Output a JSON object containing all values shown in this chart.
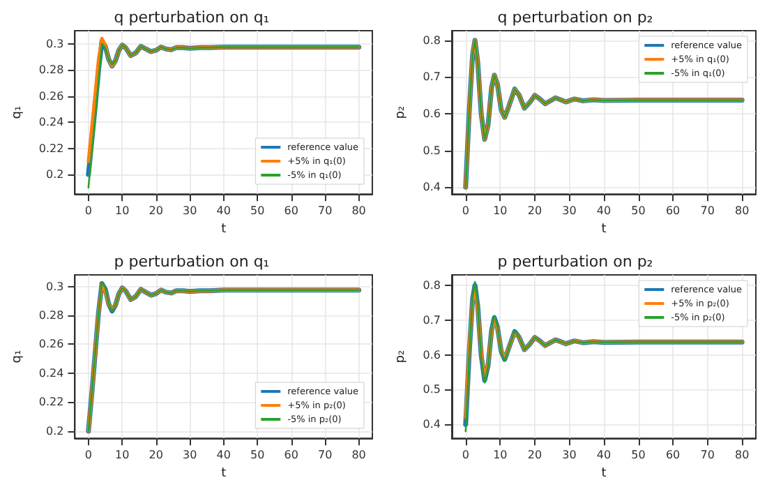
{
  "chart_data": [
    {
      "type": "line",
      "title": "q perturbation on q₁",
      "xlabel": "t",
      "ylabel": "q₁",
      "xlim": [
        -4,
        84
      ],
      "xticks": [
        0,
        10,
        20,
        30,
        40,
        50,
        60,
        70,
        80
      ],
      "ylim": [
        0.185,
        0.31
      ],
      "yticks": [
        0.2,
        0.22,
        0.24,
        0.26,
        0.28,
        0.3
      ],
      "grid": true,
      "legend": "bottom right",
      "line_style": "solid",
      "marker": "none",
      "x": [
        0,
        1,
        2,
        3,
        4,
        5,
        6,
        7,
        8,
        9,
        10,
        11,
        12.5,
        14,
        15.5,
        17,
        18.5,
        20,
        21.5,
        23,
        24.5,
        26,
        28,
        30,
        33,
        36,
        40,
        50,
        60,
        70,
        80
      ],
      "series": [
        {
          "name": "reference value",
          "color": "#1f77b4",
          "values": [
            0.2,
            0.226,
            0.252,
            0.28,
            0.302,
            0.298,
            0.288,
            0.283,
            0.287,
            0.295,
            0.299,
            0.297,
            0.291,
            0.293,
            0.298,
            0.296,
            0.294,
            0.295,
            0.2975,
            0.296,
            0.2955,
            0.297,
            0.297,
            0.2965,
            0.297,
            0.297,
            0.2975,
            0.2975,
            0.2975,
            0.2975,
            0.2975
          ]
        },
        {
          "name": "+5% in q₁(0)",
          "color": "#ff7f0e",
          "values": [
            0.21,
            0.236,
            0.262,
            0.288,
            0.304,
            0.299,
            0.288,
            0.283,
            0.287,
            0.295,
            0.299,
            0.297,
            0.291,
            0.293,
            0.298,
            0.296,
            0.294,
            0.295,
            0.2975,
            0.296,
            0.2955,
            0.297,
            0.297,
            0.2965,
            0.297,
            0.297,
            0.2975,
            0.2975,
            0.2975,
            0.2975,
            0.2975
          ]
        },
        {
          "name": "-5% in q₁(0)",
          "color": "#2ca02c",
          "values": [
            0.19,
            0.216,
            0.243,
            0.272,
            0.3,
            0.297,
            0.288,
            0.284,
            0.287,
            0.295,
            0.299,
            0.297,
            0.291,
            0.293,
            0.298,
            0.296,
            0.294,
            0.295,
            0.2975,
            0.296,
            0.2955,
            0.297,
            0.297,
            0.2965,
            0.297,
            0.297,
            0.2975,
            0.2975,
            0.2975,
            0.2975,
            0.2975
          ]
        }
      ]
    },
    {
      "type": "line",
      "title": "q perturbation on p₂",
      "xlabel": "t",
      "ylabel": "p₂",
      "xlim": [
        -4,
        84
      ],
      "xticks": [
        0,
        10,
        20,
        30,
        40,
        50,
        60,
        70,
        80
      ],
      "ylim": [
        0.381,
        0.826
      ],
      "yticks": [
        0.4,
        0.5,
        0.6,
        0.7,
        0.8
      ],
      "grid": true,
      "legend": "top right",
      "line_style": "solid",
      "marker": "none",
      "x": [
        0,
        1,
        2,
        2.7,
        3.5,
        4.5,
        5.5,
        6.5,
        7.5,
        8.3,
        9.2,
        10.3,
        11.3,
        12.5,
        14.2,
        15.5,
        17,
        18.5,
        20,
        21.5,
        23,
        24.5,
        26,
        27.5,
        29,
        31.5,
        34,
        37,
        40,
        50,
        60,
        70,
        80
      ],
      "series": [
        {
          "name": "reference value",
          "color": "#1f77b4",
          "values": [
            0.4,
            0.6,
            0.76,
            0.8,
            0.74,
            0.6,
            0.53,
            0.57,
            0.67,
            0.705,
            0.68,
            0.61,
            0.59,
            0.62,
            0.667,
            0.65,
            0.615,
            0.63,
            0.65,
            0.64,
            0.627,
            0.635,
            0.643,
            0.638,
            0.632,
            0.64,
            0.635,
            0.638,
            0.636,
            0.637,
            0.637,
            0.637,
            0.637
          ]
        },
        {
          "name": "+5% in q₁(0)",
          "color": "#ff7f0e",
          "values": [
            0.4,
            0.6,
            0.76,
            0.8,
            0.74,
            0.6,
            0.53,
            0.57,
            0.67,
            0.705,
            0.68,
            0.61,
            0.59,
            0.62,
            0.667,
            0.65,
            0.615,
            0.63,
            0.65,
            0.64,
            0.627,
            0.635,
            0.643,
            0.638,
            0.632,
            0.64,
            0.635,
            0.638,
            0.636,
            0.637,
            0.637,
            0.637,
            0.637
          ]
        },
        {
          "name": "-5% in q₁(0)",
          "color": "#2ca02c",
          "values": [
            0.4,
            0.6,
            0.76,
            0.8,
            0.74,
            0.6,
            0.53,
            0.57,
            0.67,
            0.705,
            0.68,
            0.61,
            0.59,
            0.62,
            0.667,
            0.65,
            0.615,
            0.63,
            0.65,
            0.64,
            0.627,
            0.635,
            0.643,
            0.638,
            0.632,
            0.64,
            0.635,
            0.638,
            0.636,
            0.637,
            0.637,
            0.637,
            0.637
          ]
        }
      ]
    },
    {
      "type": "line",
      "title": "p perturbation on q₁",
      "xlabel": "t",
      "ylabel": "q₁",
      "xlim": [
        -4,
        84
      ],
      "xticks": [
        0,
        10,
        20,
        30,
        40,
        50,
        60,
        70,
        80
      ],
      "ylim": [
        0.195,
        0.308
      ],
      "yticks": [
        0.2,
        0.22,
        0.24,
        0.26,
        0.28,
        0.3
      ],
      "grid": true,
      "legend": "bottom right",
      "line_style": "solid",
      "marker": "none",
      "x": [
        0,
        1,
        2,
        3,
        4,
        5,
        6,
        7,
        8,
        9,
        10,
        11,
        12.5,
        14,
        15.5,
        17,
        18.5,
        20,
        21.5,
        23,
        24.5,
        26,
        28,
        30,
        33,
        36,
        40,
        50,
        60,
        70,
        80
      ],
      "series": [
        {
          "name": "reference value",
          "color": "#1f77b4",
          "values": [
            0.2,
            0.226,
            0.254,
            0.282,
            0.302,
            0.298,
            0.288,
            0.283,
            0.287,
            0.295,
            0.299,
            0.297,
            0.291,
            0.293,
            0.298,
            0.296,
            0.294,
            0.295,
            0.2975,
            0.296,
            0.2955,
            0.297,
            0.297,
            0.2965,
            0.297,
            0.297,
            0.2975,
            0.2975,
            0.2975,
            0.2975,
            0.2975
          ]
        },
        {
          "name": "+5% in p₂(0)",
          "color": "#ff7f0e",
          "values": [
            0.2,
            0.226,
            0.254,
            0.282,
            0.301,
            0.297,
            0.288,
            0.284,
            0.287,
            0.295,
            0.299,
            0.297,
            0.291,
            0.293,
            0.298,
            0.296,
            0.294,
            0.295,
            0.2975,
            0.296,
            0.2955,
            0.297,
            0.297,
            0.2965,
            0.297,
            0.297,
            0.2975,
            0.2975,
            0.2975,
            0.2975,
            0.2975
          ]
        },
        {
          "name": "-5% in p₂(0)",
          "color": "#2ca02c",
          "values": [
            0.2,
            0.226,
            0.254,
            0.282,
            0.303,
            0.299,
            0.288,
            0.283,
            0.287,
            0.295,
            0.299,
            0.297,
            0.291,
            0.293,
            0.298,
            0.296,
            0.294,
            0.295,
            0.2975,
            0.296,
            0.2955,
            0.297,
            0.297,
            0.2965,
            0.297,
            0.297,
            0.2975,
            0.2975,
            0.2975,
            0.2975,
            0.2975
          ]
        }
      ]
    },
    {
      "type": "line",
      "title": "p perturbation on p₂",
      "xlabel": "t",
      "ylabel": "p₂",
      "xlim": [
        -4,
        84
      ],
      "xticks": [
        0,
        10,
        20,
        30,
        40,
        50,
        60,
        70,
        80
      ],
      "ylim": [
        0.36,
        0.83
      ],
      "yticks": [
        0.4,
        0.5,
        0.6,
        0.7,
        0.8
      ],
      "grid": true,
      "legend": "top right",
      "line_style": "solid",
      "marker": "none",
      "x": [
        0,
        1,
        2,
        2.7,
        3.5,
        4.5,
        5.5,
        6.5,
        7.5,
        8.3,
        9.2,
        10.3,
        11.3,
        12.5,
        14.2,
        15.5,
        17,
        18.5,
        20,
        21.5,
        23,
        24.5,
        26,
        27.5,
        29,
        31.5,
        34,
        37,
        40,
        50,
        60,
        70,
        80
      ],
      "series": [
        {
          "name": "reference value",
          "color": "#1f77b4",
          "values": [
            0.4,
            0.6,
            0.76,
            0.8,
            0.74,
            0.6,
            0.527,
            0.57,
            0.67,
            0.707,
            0.68,
            0.61,
            0.587,
            0.62,
            0.667,
            0.65,
            0.615,
            0.63,
            0.65,
            0.64,
            0.627,
            0.635,
            0.643,
            0.638,
            0.632,
            0.64,
            0.635,
            0.638,
            0.636,
            0.637,
            0.637,
            0.637,
            0.637
          ]
        },
        {
          "name": "+5% in p₂(0)",
          "color": "#ff7f0e",
          "values": [
            0.42,
            0.61,
            0.755,
            0.79,
            0.735,
            0.605,
            0.535,
            0.572,
            0.668,
            0.7,
            0.678,
            0.612,
            0.59,
            0.62,
            0.665,
            0.65,
            0.615,
            0.63,
            0.65,
            0.64,
            0.627,
            0.635,
            0.643,
            0.638,
            0.632,
            0.64,
            0.635,
            0.638,
            0.636,
            0.637,
            0.637,
            0.637,
            0.637
          ]
        },
        {
          "name": "-5% in p₂(0)",
          "color": "#2ca02c",
          "values": [
            0.38,
            0.59,
            0.765,
            0.81,
            0.745,
            0.595,
            0.52,
            0.568,
            0.672,
            0.712,
            0.682,
            0.608,
            0.584,
            0.62,
            0.669,
            0.65,
            0.615,
            0.63,
            0.65,
            0.64,
            0.627,
            0.635,
            0.643,
            0.638,
            0.632,
            0.64,
            0.635,
            0.638,
            0.636,
            0.637,
            0.637,
            0.637,
            0.637
          ]
        }
      ]
    }
  ]
}
